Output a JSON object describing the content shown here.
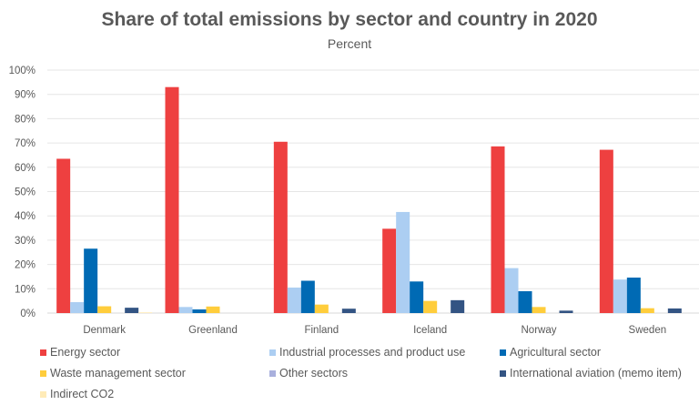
{
  "chart_data": {
    "type": "bar",
    "title": "Share of total emissions by sector and country in 2020",
    "subtitle": "Percent",
    "xlabel": "",
    "ylabel": "",
    "ylim": [
      0,
      100
    ],
    "yticks": [
      "0%",
      "10%",
      "20%",
      "30%",
      "40%",
      "50%",
      "60%",
      "70%",
      "80%",
      "90%",
      "100%"
    ],
    "ytick_values": [
      0,
      10,
      20,
      30,
      40,
      50,
      60,
      70,
      80,
      90,
      100
    ],
    "grid": true,
    "legend_position": "bottom",
    "categories": [
      "Denmark",
      "Greenland",
      "Finland",
      "Iceland",
      "Norway",
      "Sweden"
    ],
    "series": [
      {
        "name": "Energy sector",
        "color": "#EE4040",
        "values": [
          63.5,
          93.0,
          70.5,
          34.7,
          68.6,
          67.2
        ]
      },
      {
        "name": "Industrial processes and product use",
        "color": "#ACCEF2",
        "values": [
          4.5,
          2.5,
          10.5,
          41.6,
          18.5,
          13.8
        ]
      },
      {
        "name": "Agricultural sector",
        "color": "#006AB4",
        "values": [
          26.5,
          1.5,
          13.3,
          13.0,
          9.0,
          14.6
        ]
      },
      {
        "name": "Waste management sector",
        "color": "#FFCD3C",
        "values": [
          2.8,
          2.7,
          3.5,
          5.0,
          2.5,
          2.0
        ]
      },
      {
        "name": "Other sectors",
        "color": "#A9B0DD",
        "values": [
          0,
          0,
          0,
          0,
          0,
          0
        ]
      },
      {
        "name": "International aviation (memo item)",
        "color": "#335483",
        "values": [
          2.2,
          0,
          1.8,
          5.3,
          1.0,
          1.9
        ]
      },
      {
        "name": "Indirect CO2",
        "color": "#FFEBB7",
        "values": [
          0.3,
          0,
          0,
          0,
          0,
          0
        ]
      }
    ]
  }
}
